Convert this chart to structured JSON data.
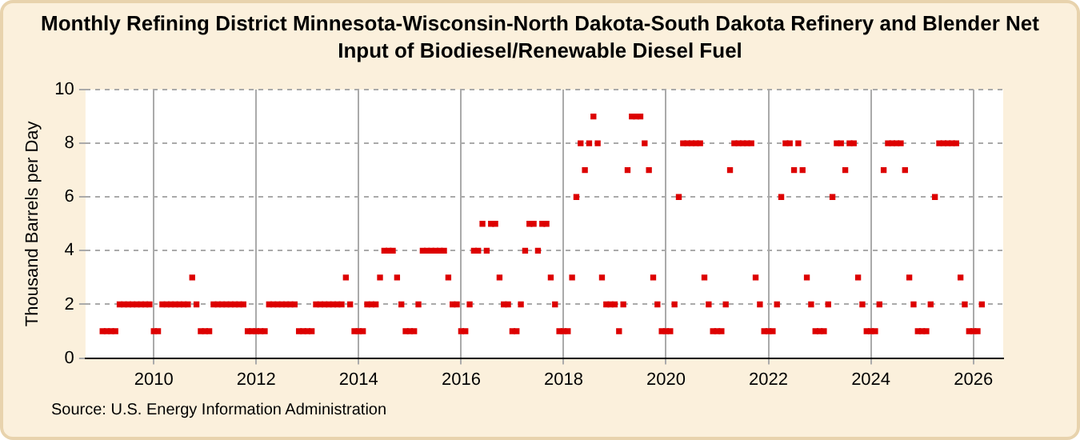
{
  "chart_data": {
    "type": "scatter",
    "title": "Monthly Refining District Minnesota-Wisconsin-North Dakota-South Dakota Refinery and Blender Net Input of Biodiesel/Renewable Diesel Fuel",
    "ylabel": "Thousand Barrels per Day",
    "annotations": [
      "Source: U.S. Energy Information Administration"
    ],
    "x": [
      "2009-01",
      "2009-02",
      "2009-03",
      "2009-04",
      "2009-05",
      "2009-06",
      "2009-07",
      "2009-08",
      "2009-09",
      "2009-10",
      "2009-11",
      "2009-12",
      "2010-01",
      "2010-02",
      "2010-03",
      "2010-04",
      "2010-05",
      "2010-06",
      "2010-07",
      "2010-08",
      "2010-09",
      "2010-10",
      "2010-11",
      "2010-12",
      "2011-01",
      "2011-02",
      "2011-03",
      "2011-04",
      "2011-05",
      "2011-06",
      "2011-07",
      "2011-08",
      "2011-09",
      "2011-10",
      "2011-11",
      "2011-12",
      "2012-01",
      "2012-02",
      "2012-03",
      "2012-04",
      "2012-05",
      "2012-06",
      "2012-07",
      "2012-08",
      "2012-09",
      "2012-10",
      "2012-11",
      "2012-12",
      "2013-01",
      "2013-02",
      "2013-03",
      "2013-04",
      "2013-05",
      "2013-06",
      "2013-07",
      "2013-08",
      "2013-09",
      "2013-10",
      "2013-11",
      "2013-12",
      "2014-01",
      "2014-02",
      "2014-03",
      "2014-04",
      "2014-05",
      "2014-06",
      "2014-07",
      "2014-08",
      "2014-09",
      "2014-10",
      "2014-11",
      "2014-12",
      "2015-01",
      "2015-02",
      "2015-03",
      "2015-04",
      "2015-05",
      "2015-06",
      "2015-07",
      "2015-08",
      "2015-09",
      "2015-10",
      "2015-11",
      "2015-12",
      "2016-01",
      "2016-02",
      "2016-03",
      "2016-04",
      "2016-05",
      "2016-06",
      "2016-07",
      "2016-08",
      "2016-09",
      "2016-10",
      "2016-11",
      "2016-12",
      "2017-01",
      "2017-02",
      "2017-03",
      "2017-04",
      "2017-05",
      "2017-06",
      "2017-07",
      "2017-08",
      "2017-09",
      "2017-10",
      "2017-11",
      "2017-12",
      "2018-01",
      "2018-02",
      "2018-03",
      "2018-04",
      "2018-05",
      "2018-06",
      "2018-07",
      "2018-08",
      "2018-09",
      "2018-10",
      "2018-11",
      "2018-12",
      "2019-01",
      "2019-02",
      "2019-03",
      "2019-04",
      "2019-05",
      "2019-06",
      "2019-07",
      "2019-08",
      "2019-09",
      "2019-10",
      "2019-11",
      "2019-12",
      "2020-01",
      "2020-02",
      "2020-03",
      "2020-04",
      "2020-05",
      "2020-06",
      "2020-07",
      "2020-08",
      "2020-09",
      "2020-10",
      "2020-11",
      "2020-12",
      "2021-01",
      "2021-02",
      "2021-03",
      "2021-04",
      "2021-05",
      "2021-06",
      "2021-07",
      "2021-08",
      "2021-09",
      "2021-10",
      "2021-11",
      "2021-12",
      "2022-01",
      "2022-02",
      "2022-03",
      "2022-04",
      "2022-05",
      "2022-06",
      "2022-07",
      "2022-08",
      "2022-09",
      "2022-10",
      "2022-11",
      "2022-12",
      "2023-01",
      "2023-02",
      "2023-03",
      "2023-04",
      "2023-05",
      "2023-06",
      "2023-07",
      "2023-08",
      "2023-09",
      "2023-10",
      "2023-11",
      "2023-12",
      "2024-01",
      "2024-02",
      "2024-03",
      "2024-04",
      "2024-05",
      "2024-06",
      "2024-07",
      "2024-08",
      "2024-09",
      "2024-10",
      "2024-11",
      "2024-12",
      "2025-01",
      "2025-02",
      "2025-03",
      "2025-04",
      "2025-05",
      "2025-06",
      "2025-07",
      "2025-08",
      "2025-09",
      "2025-10",
      "2025-11",
      "2025-12",
      "2026-01",
      "2026-02",
      "2026-03"
    ],
    "series": [
      {
        "color": "#dd0000",
        "values": [
          1,
          1,
          1,
          1,
          2,
          2,
          2,
          2,
          2,
          2,
          2,
          2,
          1,
          1,
          2,
          2,
          2,
          2,
          2,
          2,
          2,
          3,
          2,
          1,
          1,
          1,
          2,
          2,
          2,
          2,
          2,
          2,
          2,
          2,
          1,
          1,
          1,
          1,
          1,
          2,
          2,
          2,
          2,
          2,
          2,
          2,
          1,
          1,
          1,
          1,
          2,
          2,
          2,
          2,
          2,
          2,
          2,
          3,
          2,
          1,
          1,
          1,
          2,
          2,
          2,
          3,
          4,
          4,
          4,
          3,
          2,
          1,
          1,
          1,
          2,
          4,
          4,
          4,
          4,
          4,
          4,
          3,
          2,
          2,
          1,
          1,
          2,
          4,
          4,
          5,
          4,
          5,
          5,
          3,
          2,
          2,
          1,
          1,
          2,
          4,
          5,
          5,
          4,
          5,
          5,
          3,
          2,
          1,
          1,
          1,
          3,
          6,
          8,
          7,
          8,
          9,
          8,
          3,
          2,
          2,
          2,
          1,
          2,
          7,
          9,
          9,
          9,
          8,
          7,
          3,
          2,
          1,
          1,
          1,
          2,
          6,
          8,
          8,
          8,
          8,
          8,
          3,
          2,
          1,
          1,
          1,
          2,
          7,
          8,
          8,
          8,
          8,
          8,
          3,
          2,
          1,
          1,
          1,
          2,
          6,
          8,
          8,
          7,
          8,
          7,
          3,
          2,
          1,
          1,
          1,
          2,
          6,
          8,
          8,
          7,
          8,
          8,
          3,
          2,
          1,
          1,
          1,
          2,
          7,
          8,
          8,
          8,
          8,
          7,
          3,
          2,
          1,
          1,
          1,
          2,
          6,
          8,
          8,
          8,
          8,
          8,
          3,
          2,
          1,
          1,
          1,
          2
        ]
      }
    ],
    "xlim": [
      "2008-09",
      "2026-08"
    ],
    "xticks": [
      {
        "value": "2010",
        "label": "2010"
      },
      {
        "value": "2012",
        "label": "2012"
      },
      {
        "value": "2014",
        "label": "2014"
      },
      {
        "value": "2016",
        "label": "2016"
      },
      {
        "value": "2018",
        "label": "2018"
      },
      {
        "value": "2020",
        "label": "2020"
      },
      {
        "value": "2022",
        "label": "2022"
      },
      {
        "value": "2024",
        "label": "2024"
      },
      {
        "value": "2026",
        "label": "2026"
      }
    ],
    "ylim": [
      0,
      10
    ],
    "yticks": [
      0,
      2,
      4,
      6,
      8,
      10
    ],
    "grid": true,
    "marker": "square",
    "legend": false
  }
}
